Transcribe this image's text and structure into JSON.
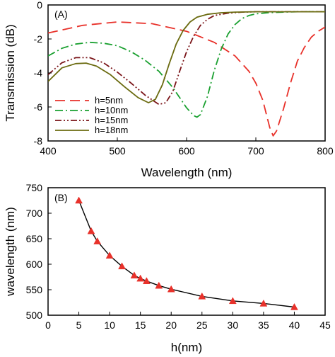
{
  "chart_data": [
    {
      "panel_label": "(A)",
      "type": "line",
      "xlabel": "Wavelength (nm)",
      "ylabel": "Transmission (dB)",
      "xlim": [
        400,
        800
      ],
      "ylim": [
        -8,
        0
      ],
      "xticks": [
        400,
        500,
        600,
        700,
        800
      ],
      "yticks": [
        0,
        -2,
        -4,
        -6,
        -8
      ],
      "legend_position": "bottom-left",
      "series": [
        {
          "name": "h=5nm",
          "color": "#e8312a",
          "dash": "dashed",
          "x": [
            400,
            450,
            500,
            550,
            600,
            640,
            670,
            690,
            700,
            710,
            720,
            725,
            730,
            740,
            750,
            760,
            770,
            780,
            790,
            800
          ],
          "y": [
            -1.65,
            -1.2,
            -1.0,
            -1.1,
            -1.55,
            -2.2,
            -3.0,
            -3.9,
            -4.6,
            -5.6,
            -7.2,
            -7.7,
            -7.4,
            -6.1,
            -4.6,
            -3.3,
            -2.5,
            -1.9,
            -1.55,
            -1.3
          ]
        },
        {
          "name": "h=10nm",
          "color": "#1aa030",
          "dash": "dashdot",
          "x": [
            400,
            420,
            440,
            460,
            480,
            500,
            520,
            540,
            560,
            580,
            590,
            600,
            610,
            615,
            620,
            630,
            640,
            650,
            660,
            670,
            680,
            690,
            700,
            720,
            740,
            760,
            800
          ],
          "y": [
            -3.0,
            -2.55,
            -2.3,
            -2.2,
            -2.25,
            -2.4,
            -2.75,
            -3.25,
            -3.9,
            -4.85,
            -5.45,
            -6.05,
            -6.5,
            -6.6,
            -6.45,
            -5.4,
            -3.85,
            -2.6,
            -1.7,
            -1.15,
            -0.8,
            -0.62,
            -0.52,
            -0.45,
            -0.42,
            -0.4,
            -0.4
          ]
        },
        {
          "name": "h=15nm",
          "color": "#7a1418",
          "dash": "dashdotdot",
          "x": [
            400,
            420,
            440,
            460,
            480,
            500,
            520,
            540,
            560,
            570,
            580,
            590,
            600,
            610,
            620,
            630,
            640,
            660,
            680,
            700,
            740,
            800
          ],
          "y": [
            -4.1,
            -3.4,
            -3.1,
            -3.1,
            -3.4,
            -3.95,
            -4.6,
            -5.3,
            -5.85,
            -5.75,
            -5.1,
            -3.9,
            -2.75,
            -1.85,
            -1.2,
            -0.85,
            -0.62,
            -0.48,
            -0.42,
            -0.4,
            -0.4,
            -0.4
          ]
        },
        {
          "name": "h=18nm",
          "color": "#6b6b10",
          "dash": "solid",
          "x": [
            400,
            420,
            440,
            455,
            470,
            490,
            510,
            530,
            545,
            555,
            565,
            575,
            585,
            595,
            605,
            615,
            630,
            650,
            670,
            700,
            750,
            800
          ],
          "y": [
            -4.5,
            -3.7,
            -3.45,
            -3.42,
            -3.6,
            -4.1,
            -4.8,
            -5.45,
            -5.75,
            -5.55,
            -4.7,
            -3.45,
            -2.3,
            -1.5,
            -1.0,
            -0.72,
            -0.55,
            -0.46,
            -0.42,
            -0.4,
            -0.4,
            -0.4
          ]
        }
      ]
    },
    {
      "panel_label": "(B)",
      "type": "line",
      "xlabel": "h(nm)",
      "ylabel": "wavelength (nm)",
      "xlim": [
        0,
        45
      ],
      "ylim": [
        500,
        750
      ],
      "xticks": [
        0,
        5,
        10,
        15,
        20,
        25,
        30,
        35,
        40,
        45
      ],
      "yticks": [
        500,
        550,
        600,
        650,
        700,
        750
      ],
      "marker": "triangle",
      "marker_color": "#e8312a",
      "series": [
        {
          "name": "",
          "color": "#000000",
          "x": [
            5,
            7,
            8,
            10,
            12,
            14,
            15,
            16,
            18,
            20,
            25,
            30,
            35,
            40
          ],
          "y": [
            725,
            665,
            645,
            617,
            596,
            578,
            572,
            567,
            558,
            551,
            537,
            528,
            523,
            516
          ]
        }
      ]
    }
  ]
}
